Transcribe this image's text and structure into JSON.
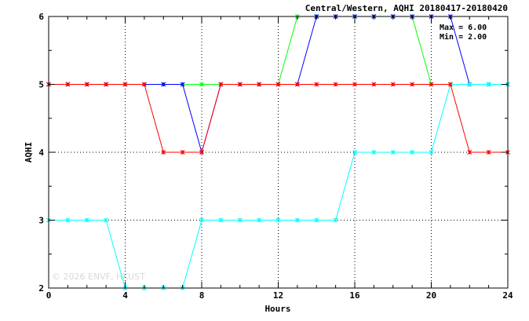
{
  "chart_data": {
    "type": "line",
    "title": "Central/Western, AQHI 20180417-20180420",
    "xlabel": "Hours",
    "ylabel": "AQHI",
    "xlim": [
      0,
      24
    ],
    "ylim": [
      2,
      6
    ],
    "x_ticks": [
      0,
      4,
      8,
      12,
      16,
      20,
      24
    ],
    "y_ticks": [
      2,
      3,
      4,
      5,
      6
    ],
    "grid": "dotted",
    "stats": [
      "Max = 6.00",
      "Min = 2.00"
    ],
    "watermark": "© 2026  ENVF, HKUST",
    "x": [
      0,
      1,
      2,
      3,
      4,
      5,
      6,
      7,
      8,
      9,
      10,
      11,
      12,
      13,
      14,
      15,
      16,
      17,
      18,
      19,
      20,
      21,
      22,
      23,
      24
    ],
    "series": [
      {
        "color": "#00ff00",
        "values": [
          5,
          5,
          5,
          5,
          5,
          5,
          5,
          5,
          5,
          5,
          5,
          5,
          5,
          6,
          6,
          6,
          6,
          6,
          6,
          6,
          5,
          5,
          5,
          5,
          5
        ]
      },
      {
        "color": "#0000ff",
        "values": [
          5,
          5,
          5,
          5,
          5,
          5,
          5,
          5,
          4,
          5,
          5,
          5,
          5,
          5,
          6,
          6,
          6,
          6,
          6,
          6,
          6,
          6,
          5,
          5,
          5
        ]
      },
      {
        "color": "#00ffff",
        "values": [
          3,
          3,
          3,
          3,
          2,
          2,
          2,
          2,
          3,
          3,
          3,
          3,
          3,
          3,
          3,
          3,
          4,
          4,
          4,
          4,
          4,
          5,
          5,
          5,
          5
        ]
      },
      {
        "color": "#ff0000",
        "values": [
          5,
          5,
          5,
          5,
          5,
          5,
          4,
          4,
          4,
          5,
          5,
          5,
          5,
          5,
          5,
          5,
          5,
          5,
          5,
          5,
          5,
          5,
          4,
          4,
          4
        ]
      }
    ]
  }
}
